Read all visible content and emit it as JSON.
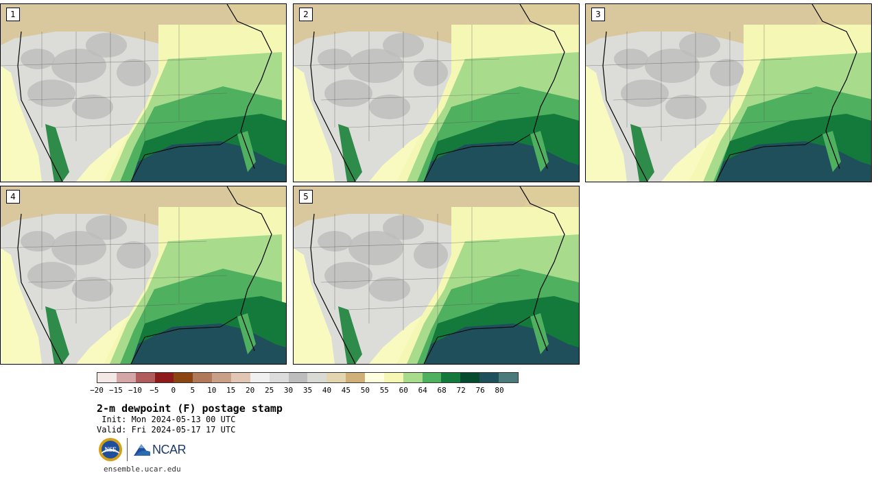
{
  "panels": [
    {
      "label": "1"
    },
    {
      "label": "2"
    },
    {
      "label": "3"
    },
    {
      "label": "4"
    },
    {
      "label": "5"
    }
  ],
  "colorbar": {
    "colors": [
      "#f3e8e6",
      "#d4a6a6",
      "#b05c5c",
      "#8e1b1b",
      "#8b4513",
      "#b07a5a",
      "#c9a087",
      "#e2c6b4",
      "#f0f0f0",
      "#dcdcdc",
      "#bdbdbd",
      "#dadad4",
      "#e3d5b0",
      "#cfb079",
      "#ffffe0",
      "#f5f8b4",
      "#a8dc8c",
      "#4fb060",
      "#137a3c",
      "#064b2d",
      "#1e4f5a",
      "#4b7a7a"
    ],
    "tick_labels": [
      "−20",
      "−15",
      "−10",
      "−5",
      "0",
      "5",
      "10",
      "15",
      "20",
      "25",
      "30",
      "35",
      "40",
      "45",
      "50",
      "55",
      "60",
      "64",
      "68",
      "72",
      "76",
      "80"
    ]
  },
  "title": "2-m dewpoint (F) postage stamp",
  "init_line": " Init: Mon 2024-05-13 00 UTC",
  "valid_line": "Valid: Fri 2024-05-17 17 UTC",
  "logos": {
    "nsf_text": "NSF",
    "ncar_text": "NCAR"
  },
  "site": "ensemble.ucar.edu"
}
